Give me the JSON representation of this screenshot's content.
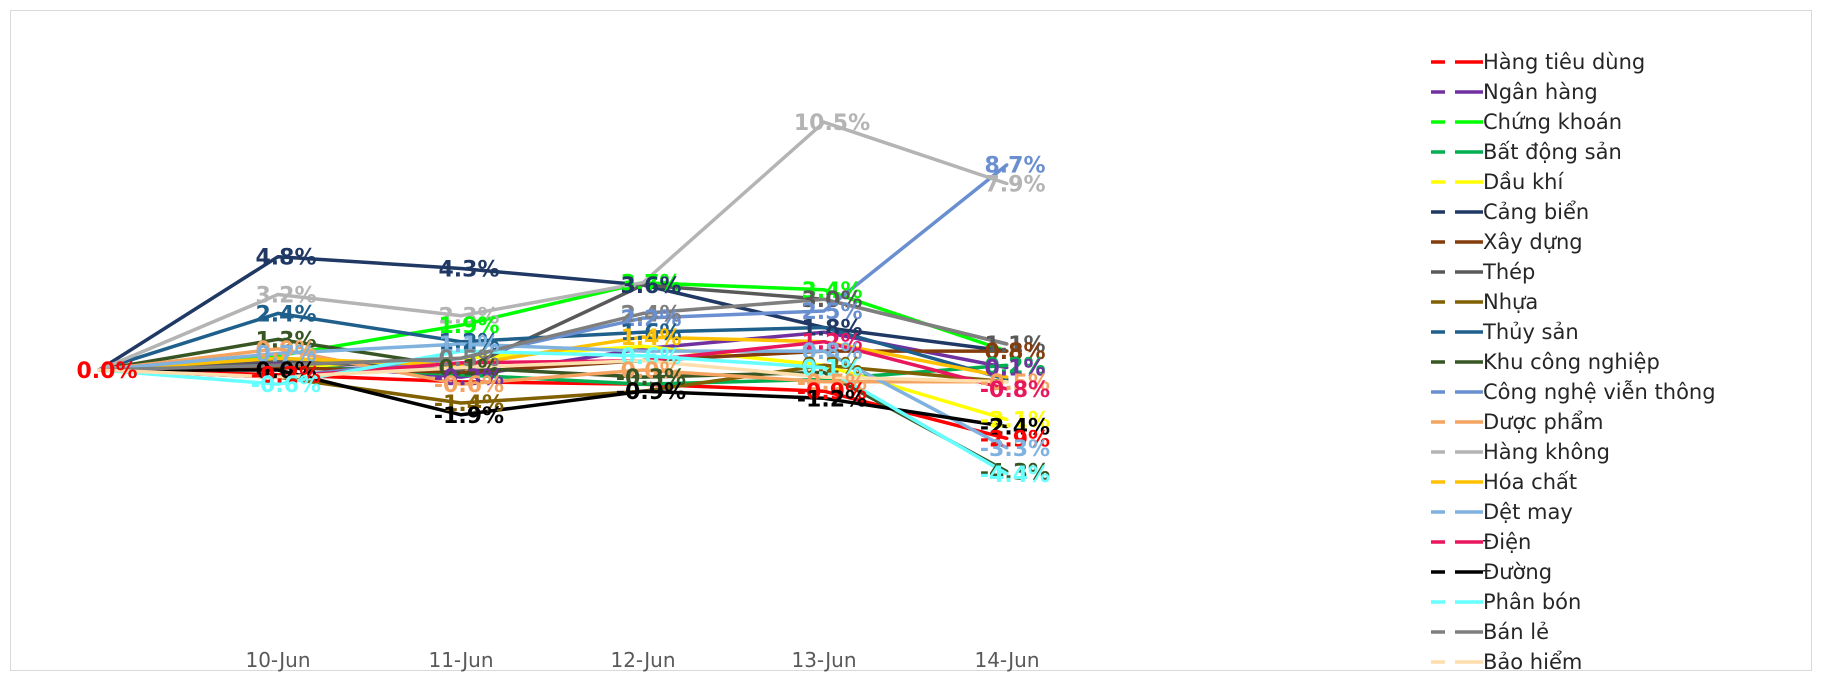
{
  "chart_data": {
    "type": "line",
    "categories": [
      "",
      "10-Jun",
      "11-Jun",
      "12-Jun",
      "13-Jun",
      "14-Jun"
    ],
    "ylim": [
      -5,
      11
    ],
    "grid": false,
    "legend_position": "right",
    "series": [
      {
        "name": "Hàng tiêu dùng",
        "color": "#ff0000",
        "values": [
          0.0,
          -0.2,
          -0.5,
          -0.6,
          -0.9,
          -2.9
        ]
      },
      {
        "name": "Ngân hàng",
        "color": "#7030a0",
        "values": [
          0.0,
          0.3,
          -0.3,
          0.9,
          1.6,
          0.1
        ]
      },
      {
        "name": "Chứng khoán",
        "color": "#00ff00",
        "values": [
          0.0,
          0.6,
          1.9,
          3.7,
          3.4,
          0.8
        ]
      },
      {
        "name": "Bất động sản",
        "color": "#00b050",
        "values": [
          0.0,
          0.2,
          -0.2,
          -0.6,
          -0.4,
          0.2
        ]
      },
      {
        "name": "Dầu khí",
        "color": "#ffff00",
        "values": [
          0.0,
          0.1,
          0.5,
          1.0,
          0.2,
          -2.1
        ]
      },
      {
        "name": "Cảng biển",
        "color": "#1f3864",
        "values": [
          0.0,
          4.8,
          4.3,
          3.6,
          1.8,
          0.8
        ]
      },
      {
        "name": "Xây dựng",
        "color": "#843c0c",
        "values": [
          0.0,
          0.1,
          -0.1,
          0.4,
          0.8,
          0.8
        ]
      },
      {
        "name": "Thép",
        "color": "#595959",
        "values": [
          0.0,
          0.4,
          0.0,
          3.6,
          3.0,
          1.1
        ]
      },
      {
        "name": "Nhựa",
        "color": "#806000",
        "values": [
          0.0,
          -0.3,
          -1.4,
          -0.9,
          0.2,
          -0.5
        ]
      },
      {
        "name": "Thủy sản",
        "color": "#1f5f8b",
        "values": [
          0.0,
          2.4,
          1.2,
          1.6,
          1.8,
          -0.4
        ]
      },
      {
        "name": "Khu công nghiệp",
        "color": "#375623",
        "values": [
          0.0,
          1.3,
          0.1,
          -0.3,
          -0.1,
          -4.3
        ]
      },
      {
        "name": "Công nghệ viễn thông",
        "color": "#6a8fd1",
        "values": [
          0.0,
          -0.3,
          0.5,
          2.2,
          2.5,
          8.7
        ]
      },
      {
        "name": "Dược phẩm",
        "color": "#f4a460",
        "values": [
          0.0,
          0.9,
          -0.6,
          0.0,
          -0.5,
          -0.5
        ]
      },
      {
        "name": "Hàng không",
        "color": "#b4b4b4",
        "values": [
          0.0,
          3.2,
          2.3,
          3.7,
          10.5,
          7.9
        ]
      },
      {
        "name": "Hóa chất",
        "color": "#ffc000",
        "values": [
          0.0,
          0.5,
          0.2,
          1.4,
          1.2,
          -0.3
        ]
      },
      {
        "name": "Dệt may",
        "color": "#7fb2de",
        "values": [
          0.0,
          0.7,
          1.1,
          0.8,
          0.8,
          -3.3
        ]
      },
      {
        "name": "Điện",
        "color": "#e8175d",
        "values": [
          0.0,
          -0.3,
          0.3,
          0.4,
          1.2,
          -0.8
        ]
      },
      {
        "name": "Đường",
        "color": "#000000",
        "values": [
          0.0,
          0.0,
          -1.9,
          -0.9,
          -1.2,
          -2.4
        ]
      },
      {
        "name": "Phân bón",
        "color": "#66ffff",
        "values": [
          0.0,
          -0.6,
          0.8,
          0.6,
          0.1,
          -4.4
        ]
      },
      {
        "name": "Bán lẻ",
        "color": "#7f7f7f",
        "values": [
          0.0,
          0.2,
          0.5,
          2.4,
          3.0,
          1.1
        ]
      },
      {
        "name": "Bảo hiểm",
        "color": "#ffdead",
        "values": [
          0.0,
          -0.3,
          0.1,
          0.4,
          -0.3,
          -0.5
        ]
      }
    ],
    "data_labels": [
      {
        "series": "Hàng tiêu dùng",
        "index": 0,
        "text": "0.0%"
      },
      {
        "series": "Cảng biển",
        "index": 1,
        "text": "4.8%"
      },
      {
        "series": "Hàng không",
        "index": 1,
        "text": "3.2%"
      },
      {
        "series": "Thủy sản",
        "index": 1,
        "text": "2.4%"
      },
      {
        "series": "Khu công nghiệp",
        "index": 1,
        "text": "1.3%"
      },
      {
        "series": "Dược phẩm",
        "index": 1,
        "text": "0.9%"
      },
      {
        "series": "Dệt may",
        "index": 1,
        "text": "0.7%"
      },
      {
        "series": "Đường",
        "index": 1,
        "text": "0.0%"
      },
      {
        "series": "Hàng tiêu dùng",
        "index": 1,
        "text": "-0.2%"
      },
      {
        "series": "Phân bón",
        "index": 1,
        "text": "-0.6%"
      },
      {
        "series": "Cảng biển",
        "index": 2,
        "text": "4.3%"
      },
      {
        "series": "Hàng không",
        "index": 2,
        "text": "2.3%"
      },
      {
        "series": "Chứng khoán",
        "index": 2,
        "text": "1.9%"
      },
      {
        "series": "Thủy sản",
        "index": 2,
        "text": "1.2%"
      },
      {
        "series": "Dệt may",
        "index": 2,
        "text": "1.1%"
      },
      {
        "series": "Bán lẻ",
        "index": 2,
        "text": "0.5%"
      },
      {
        "series": "Khu công nghiệp",
        "index": 2,
        "text": "0.1%"
      },
      {
        "series": "Ngân hàng",
        "index": 2,
        "text": "-0.3%"
      },
      {
        "series": "Dược phẩm",
        "index": 2,
        "text": "-0.6%"
      },
      {
        "series": "Nhựa",
        "index": 2,
        "text": "-1.4%"
      },
      {
        "series": "Đường",
        "index": 2,
        "text": "-1.9%"
      },
      {
        "series": "Chứng khoán",
        "index": 3,
        "text": "3.7%"
      },
      {
        "series": "Cảng biển",
        "index": 3,
        "text": "3.6%"
      },
      {
        "series": "Bán lẻ",
        "index": 3,
        "text": "2.4%"
      },
      {
        "series": "Công nghệ viễn thông",
        "index": 3,
        "text": "2.2%"
      },
      {
        "series": "Thủy sản",
        "index": 3,
        "text": "1.6%"
      },
      {
        "series": "Hóa chất",
        "index": 3,
        "text": "1.4%"
      },
      {
        "series": "Phân bón",
        "index": 3,
        "text": "0.6%"
      },
      {
        "series": "Dược phẩm",
        "index": 3,
        "text": "0.0%"
      },
      {
        "series": "Khu công nghiệp",
        "index": 3,
        "text": "-0.3%"
      },
      {
        "series": "Đường",
        "index": 3,
        "text": "-0.9%"
      },
      {
        "series": "Hàng không",
        "index": 4,
        "text": "10.5%"
      },
      {
        "series": "Chứng khoán",
        "index": 4,
        "text": "3.4%"
      },
      {
        "series": "Thép",
        "index": 4,
        "text": "3.0%"
      },
      {
        "series": "Công nghệ viễn thông",
        "index": 4,
        "text": "2.5%"
      },
      {
        "series": "Cảng biển",
        "index": 4,
        "text": "1.8%"
      },
      {
        "series": "Điện",
        "index": 4,
        "text": "1.2%"
      },
      {
        "series": "Dệt may",
        "index": 4,
        "text": "0.8%"
      },
      {
        "series": "Nhựa",
        "index": 4,
        "text": "0.2%"
      },
      {
        "series": "Phân bón",
        "index": 4,
        "text": "0.1%"
      },
      {
        "series": "Dược phẩm",
        "index": 4,
        "text": "-0.5%"
      },
      {
        "series": "Hàng tiêu dùng",
        "index": 4,
        "text": "-0.9%"
      },
      {
        "series": "Đường",
        "index": 4,
        "text": "-1.2%"
      },
      {
        "series": "Công nghệ viễn thông",
        "index": 5,
        "text": "8.7%"
      },
      {
        "series": "Hàng không",
        "index": 5,
        "text": "7.9%"
      },
      {
        "series": "Thép",
        "index": 5,
        "text": "1.1%"
      },
      {
        "series": "Xây dựng",
        "index": 5,
        "text": "0.8%"
      },
      {
        "series": "Bất động sản",
        "index": 5,
        "text": "0.2%"
      },
      {
        "series": "Ngân hàng",
        "index": 5,
        "text": "0.1%"
      },
      {
        "series": "Dược phẩm",
        "index": 5,
        "text": "-0.5%"
      },
      {
        "series": "Điện",
        "index": 5,
        "text": "-0.8%"
      },
      {
        "series": "Dầu khí",
        "index": 5,
        "text": "-2.1%"
      },
      {
        "series": "Đường",
        "index": 5,
        "text": "-2.4%"
      },
      {
        "series": "Hàng tiêu dùng",
        "index": 5,
        "text": "-2.9%"
      },
      {
        "series": "Dệt may",
        "index": 5,
        "text": "-3.3%"
      },
      {
        "series": "Khu công nghiệp",
        "index": 5,
        "text": "-4.3%"
      },
      {
        "series": "Phân bón",
        "index": 5,
        "text": "-4.4%"
      }
    ]
  }
}
